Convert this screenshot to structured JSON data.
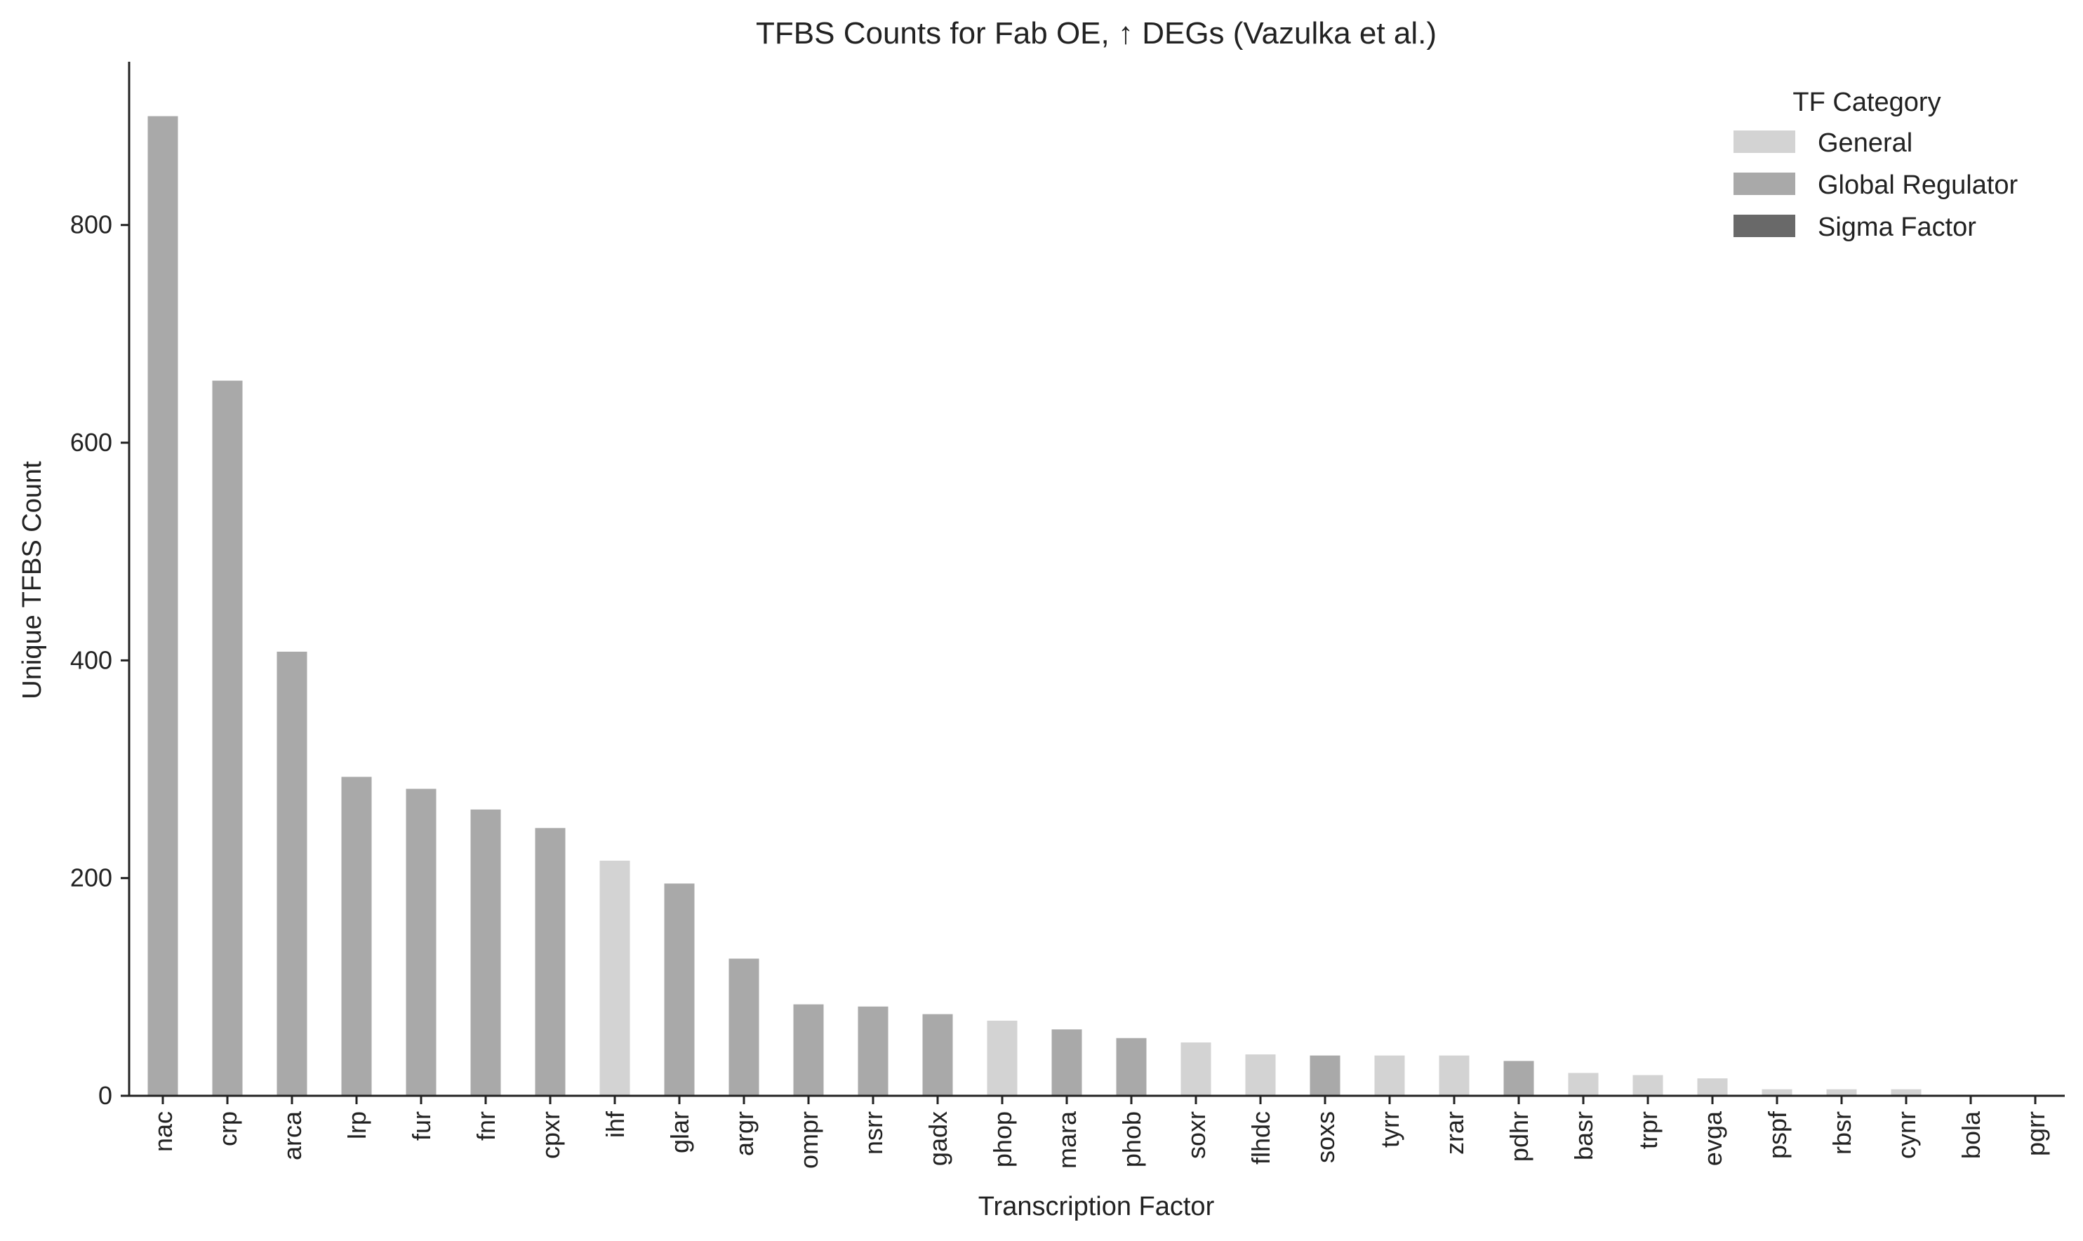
{
  "chart_data": {
    "type": "bar",
    "title": "TFBS Counts for Fab OE, ↑ DEGs (Vazulka et al.)",
    "xlabel": "Transcription Factor",
    "ylabel": "Unique TFBS Count",
    "ylim": [
      0,
      950
    ],
    "yticks": [
      0,
      200,
      400,
      600,
      800
    ],
    "grid": false,
    "legend": {
      "title": "TF Category",
      "position": "top-right",
      "entries": [
        {
          "label": "General",
          "color": "#d3d3d3"
        },
        {
          "label": "Global Regulator",
          "color": "#a9a9a9"
        },
        {
          "label": "Sigma Factor",
          "color": "#696969"
        }
      ]
    },
    "categories": [
      "nac",
      "crp",
      "arca",
      "lrp",
      "fur",
      "fnr",
      "cpxr",
      "ihf",
      "glar",
      "argr",
      "ompr",
      "nsrr",
      "gadx",
      "phop",
      "mara",
      "phob",
      "soxr",
      "flhdc",
      "soxs",
      "tyrr",
      "zrar",
      "pdhr",
      "basr",
      "trpr",
      "evga",
      "pspf",
      "rbsr",
      "cynr",
      "bola",
      "pgrr"
    ],
    "values": [
      900,
      657,
      408,
      293,
      282,
      263,
      246,
      216,
      195,
      126,
      84,
      82,
      75,
      69,
      61,
      53,
      49,
      38,
      37,
      37,
      37,
      32,
      21,
      19,
      16,
      6,
      6,
      6,
      1,
      1
    ],
    "category_type": [
      "Global Regulator",
      "Global Regulator",
      "Global Regulator",
      "Global Regulator",
      "Global Regulator",
      "Global Regulator",
      "Global Regulator",
      "General",
      "Global Regulator",
      "Global Regulator",
      "Global Regulator",
      "Global Regulator",
      "Global Regulator",
      "General",
      "Global Regulator",
      "Global Regulator",
      "General",
      "General",
      "Global Regulator",
      "General",
      "General",
      "Global Regulator",
      "General",
      "General",
      "General",
      "General",
      "General",
      "General",
      "General",
      "General"
    ]
  }
}
